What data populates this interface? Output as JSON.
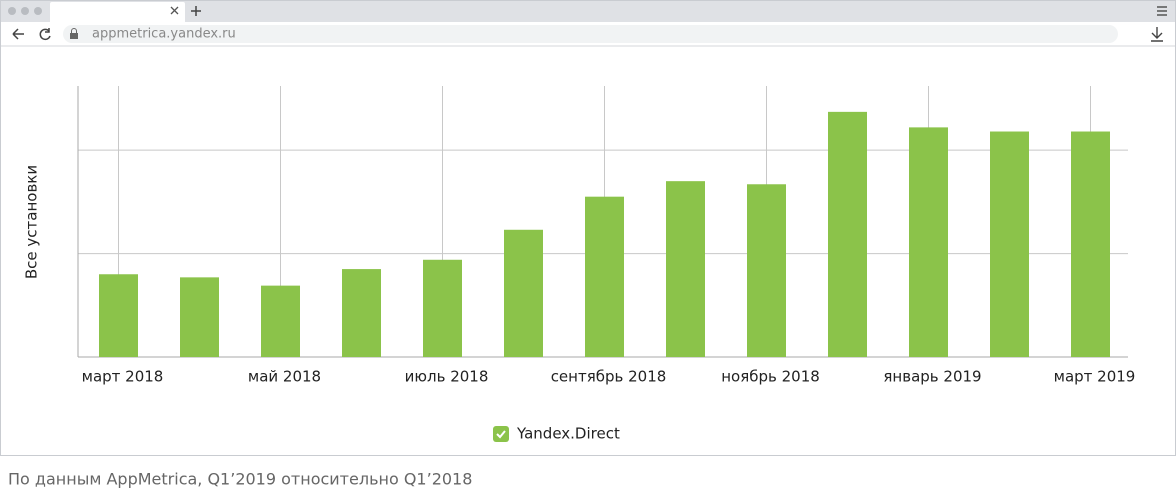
{
  "browser": {
    "url": "appmetrica.yandex.ru"
  },
  "chart_data": {
    "type": "bar",
    "y_label": "Все установки",
    "categories": [
      "март 2018",
      null,
      "май 2018",
      null,
      "июль 2018",
      null,
      "сентябрь 2018",
      null,
      "ноябрь 2018",
      null,
      "январь 2019",
      null,
      "март 2019"
    ],
    "series": [
      {
        "name": "Yandex.Direct",
        "color": "#8bc34a",
        "values": [
          0.8,
          0.77,
          0.69,
          0.85,
          0.94,
          1.23,
          1.55,
          1.7,
          1.67,
          2.37,
          2.22,
          2.18,
          2.18
        ]
      }
    ],
    "ylim": [
      0,
      2.62
    ],
    "yticks": [
      0,
      1,
      2
    ],
    "grid": true,
    "legend": "bottom"
  },
  "caption": "По данным AppMetrica, Q1’2019 относительно Q1’2018"
}
